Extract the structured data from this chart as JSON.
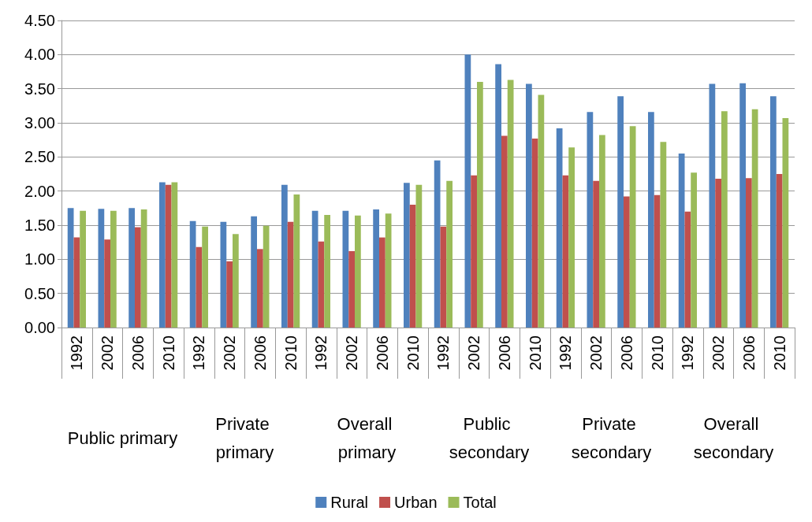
{
  "chart_data": {
    "type": "bar",
    "categories": [
      "1992",
      "2002",
      "2006",
      "2010",
      "1992",
      "2002",
      "2006",
      "2010",
      "1992",
      "2002",
      "2006",
      "2010",
      "1992",
      "2002",
      "2006",
      "2010",
      "1992",
      "2002",
      "2006",
      "2010",
      "1992",
      "2002",
      "2006",
      "2010"
    ],
    "annotations": [
      "Public primary",
      "Private primary",
      "Overall primary",
      "Public secondary",
      "Private secondary",
      "Overall secondary"
    ],
    "series": [
      {
        "name": "Rural",
        "color": "#4f81bd",
        "values": [
          1.75,
          1.74,
          1.75,
          2.13,
          1.56,
          1.55,
          1.63,
          2.09,
          1.71,
          1.71,
          1.73,
          2.12,
          2.45,
          4.0,
          3.86,
          3.57,
          2.92,
          3.16,
          3.39,
          3.16,
          2.55,
          3.57,
          3.58,
          3.39
        ]
      },
      {
        "name": "Urban",
        "color": "#c0504d",
        "values": [
          1.32,
          1.29,
          1.47,
          2.09,
          1.18,
          0.97,
          1.15,
          1.55,
          1.26,
          1.12,
          1.32,
          1.8,
          1.48,
          2.23,
          2.81,
          2.77,
          2.23,
          2.15,
          1.92,
          1.94,
          1.7,
          2.18,
          2.19,
          2.25
        ]
      },
      {
        "name": "Total",
        "color": "#9bbb59",
        "values": [
          1.71,
          1.71,
          1.73,
          2.13,
          1.48,
          1.37,
          1.49,
          1.95,
          1.65,
          1.64,
          1.67,
          2.09,
          2.15,
          3.6,
          3.63,
          3.41,
          2.64,
          2.82,
          2.95,
          2.72,
          2.27,
          3.17,
          3.2,
          3.07
        ]
      }
    ],
    "ylim": [
      0,
      4.5
    ],
    "yticks": [
      {
        "value": 0,
        "label": "0.00"
      },
      {
        "value": 0.5,
        "label": "0.50"
      },
      {
        "value": 1,
        "label": "1.00"
      },
      {
        "value": 1.5,
        "label": "1.50"
      },
      {
        "value": 2,
        "label": "2.00"
      },
      {
        "value": 2.5,
        "label": "2.50"
      },
      {
        "value": 3,
        "label": "3.00"
      },
      {
        "value": 3.5,
        "label": "3.50"
      },
      {
        "value": 4,
        "label": "4.00"
      },
      {
        "value": 4.5,
        "label": "4.50"
      }
    ],
    "grid": "y",
    "legend": "bottom"
  }
}
